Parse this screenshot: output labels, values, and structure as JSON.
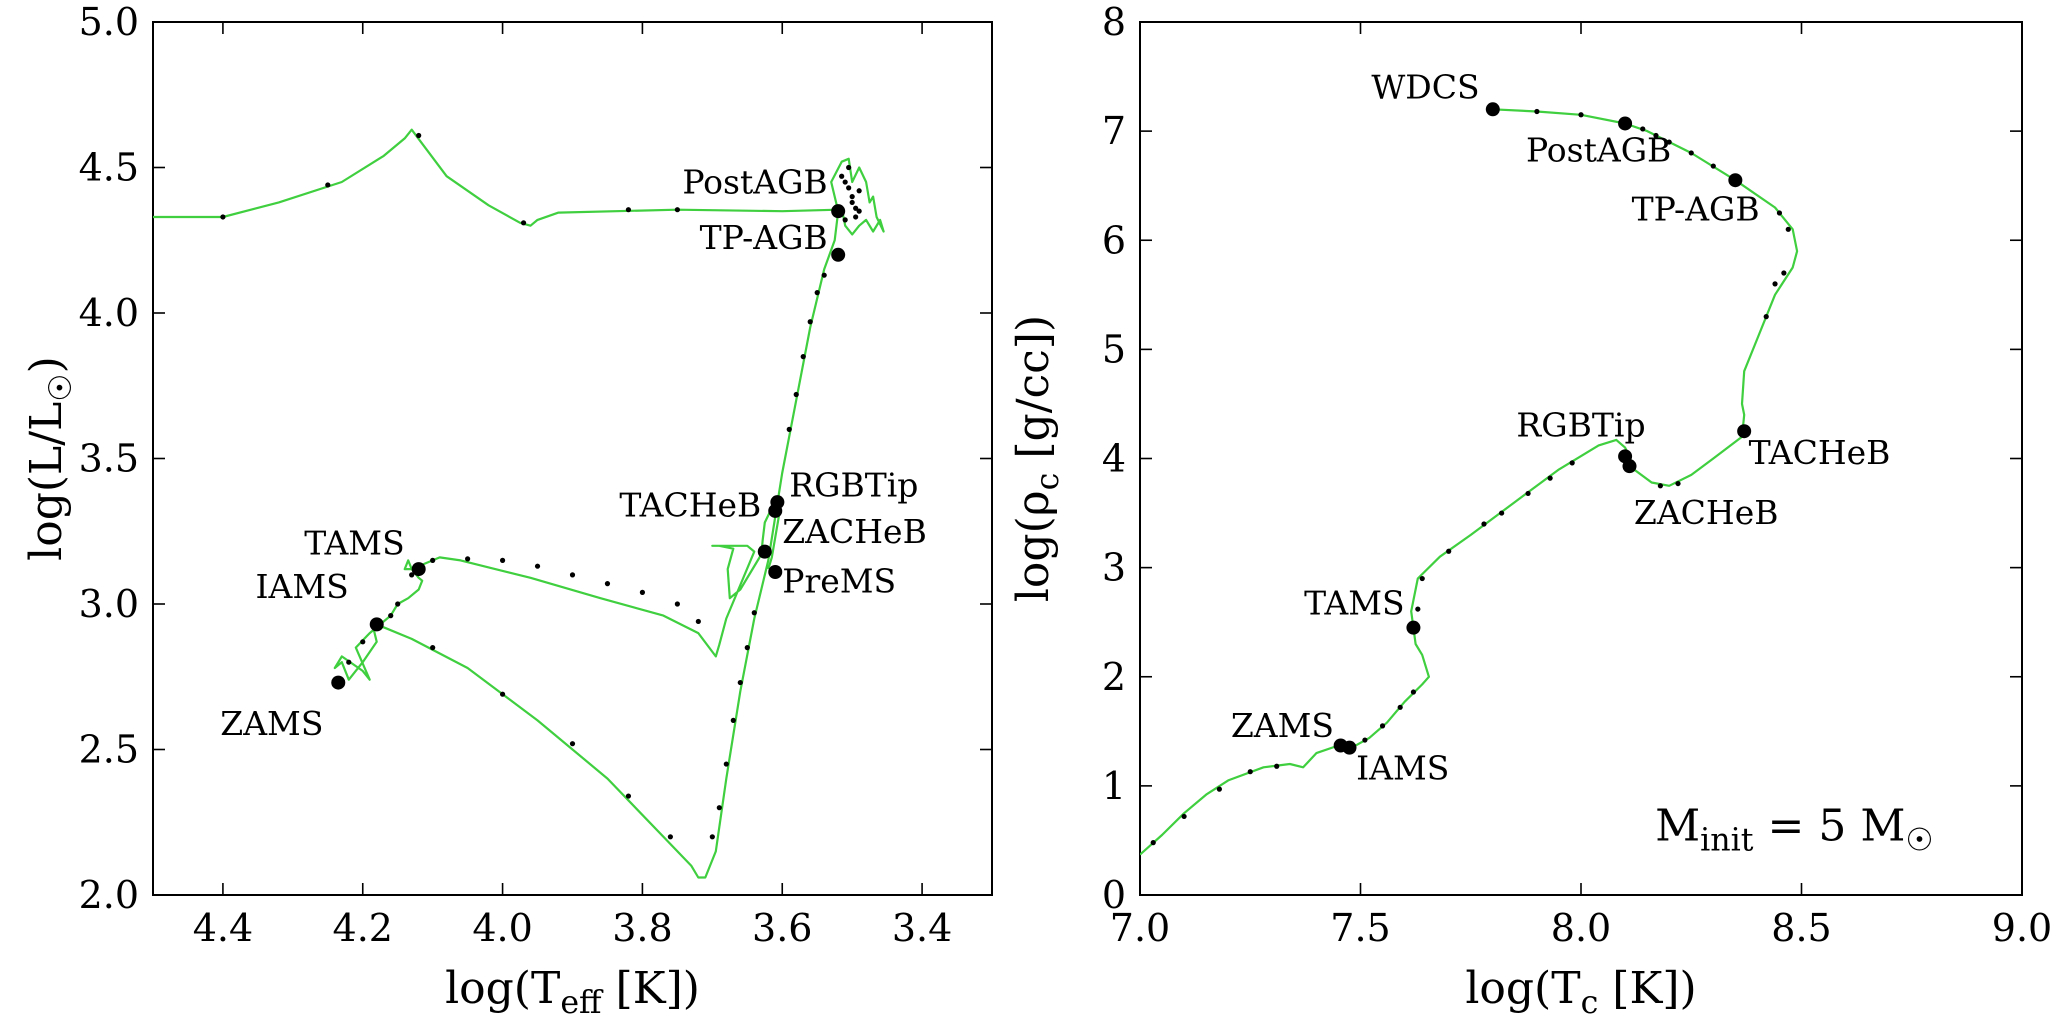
{
  "colors": {
    "track": "#3fcf3f",
    "markers": "#000000",
    "axes": "#000000"
  },
  "chart_data": [
    {
      "type": "line",
      "id": "hrd",
      "title": "",
      "xlabel": "log(T_eff [K])",
      "xlabel_parts": {
        "pre": "log(T",
        "sub": "eff",
        "post": " [K])"
      },
      "ylabel": "log(L/L☉)",
      "ylabel_parts": {
        "pre": "log(L/L",
        "sub": "☉",
        "post": ")"
      },
      "xlim": [
        4.5,
        3.3
      ],
      "ylim": [
        2.0,
        5.0
      ],
      "x_inverted": true,
      "xticks": [
        4.4,
        4.2,
        4.0,
        3.8,
        3.6,
        3.4
      ],
      "xtick_labels": [
        "4.4",
        "4.2",
        "4.0",
        "3.8",
        "3.6",
        "3.4"
      ],
      "yticks": [
        2.0,
        2.5,
        3.0,
        3.5,
        4.0,
        4.5,
        5.0
      ],
      "ytick_labels": [
        "2.0",
        "2.5",
        "3.0",
        "3.5",
        "4.0",
        "4.5",
        "5.0"
      ],
      "track": [
        [
          3.62,
          3.12
        ],
        [
          3.615,
          3.16
        ],
        [
          3.605,
          3.3
        ],
        [
          3.61,
          3.36
        ],
        [
          3.615,
          3.33
        ],
        [
          3.625,
          3.28
        ],
        [
          3.628,
          3.22
        ],
        [
          3.63,
          3.17
        ],
        [
          3.66,
          3.05
        ],
        [
          3.675,
          3.02
        ],
        [
          3.678,
          3.12
        ],
        [
          3.67,
          3.19
        ],
        [
          3.69,
          3.2
        ],
        [
          3.7,
          3.2
        ],
        [
          3.65,
          3.2
        ],
        [
          3.64,
          3.18
        ],
        [
          3.68,
          2.95
        ],
        [
          3.69,
          2.86
        ],
        [
          3.695,
          2.82
        ],
        [
          3.72,
          2.9
        ],
        [
          3.77,
          2.96
        ],
        [
          3.86,
          3.02
        ],
        [
          3.96,
          3.09
        ],
        [
          4.06,
          3.15
        ],
        [
          4.09,
          3.16
        ],
        [
          4.13,
          3.12
        ],
        [
          4.14,
          3.12
        ],
        [
          4.135,
          3.15
        ],
        [
          4.13,
          3.12
        ],
        [
          4.12,
          3.09
        ],
        [
          4.115,
          3.08
        ],
        [
          4.12,
          3.05
        ],
        [
          4.135,
          3.02
        ],
        [
          4.15,
          3.0
        ],
        [
          4.16,
          2.96
        ],
        [
          4.175,
          2.93
        ],
        [
          4.185,
          2.92
        ],
        [
          4.18,
          2.87
        ],
        [
          4.2,
          2.8
        ],
        [
          4.22,
          2.74
        ],
        [
          4.23,
          2.8
        ],
        [
          4.24,
          2.78
        ],
        [
          4.23,
          2.82
        ],
        [
          4.2,
          2.77
        ],
        [
          4.19,
          2.74
        ],
        [
          4.21,
          2.85
        ],
        [
          4.19,
          2.9
        ],
        [
          4.18,
          2.92
        ],
        [
          4.17,
          2.92
        ],
        [
          4.13,
          2.88
        ],
        [
          4.05,
          2.78
        ],
        [
          3.95,
          2.6
        ],
        [
          3.85,
          2.4
        ],
        [
          3.77,
          2.2
        ],
        [
          3.73,
          2.1
        ],
        [
          3.72,
          2.06
        ],
        [
          3.71,
          2.06
        ],
        [
          3.695,
          2.15
        ],
        [
          3.68,
          2.4
        ],
        [
          3.66,
          2.7
        ],
        [
          3.64,
          2.95
        ],
        [
          3.62,
          3.15
        ],
        [
          3.6,
          3.45
        ],
        [
          3.58,
          3.7
        ],
        [
          3.56,
          3.95
        ],
        [
          3.54,
          4.15
        ],
        [
          3.525,
          4.25
        ],
        [
          3.52,
          4.35
        ],
        [
          3.53,
          4.45
        ],
        [
          3.515,
          4.52
        ],
        [
          3.505,
          4.53
        ],
        [
          3.5,
          4.45
        ],
        [
          3.49,
          4.5
        ],
        [
          3.48,
          4.45
        ],
        [
          3.475,
          4.38
        ],
        [
          3.47,
          4.4
        ],
        [
          3.465,
          4.33
        ],
        [
          3.455,
          4.28
        ],
        [
          3.46,
          4.32
        ],
        [
          3.47,
          4.28
        ],
        [
          3.48,
          4.32
        ],
        [
          3.49,
          4.3
        ],
        [
          3.5,
          4.27
        ],
        [
          3.51,
          4.3
        ],
        [
          3.515,
          4.36
        ],
        [
          3.52,
          4.355
        ],
        [
          3.6,
          4.35
        ],
        [
          3.75,
          4.355
        ],
        [
          3.92,
          4.345
        ],
        [
          3.95,
          4.32
        ],
        [
          3.96,
          4.3
        ],
        [
          3.975,
          4.31
        ],
        [
          4.02,
          4.37
        ],
        [
          4.08,
          4.47
        ],
        [
          4.13,
          4.63
        ],
        [
          4.14,
          4.6
        ],
        [
          4.17,
          4.54
        ],
        [
          4.23,
          4.45
        ],
        [
          4.32,
          4.38
        ],
        [
          4.4,
          4.33
        ],
        [
          4.5,
          4.33
        ]
      ],
      "markers": [
        {
          "label": "ZAMS",
          "x": 4.235,
          "y": 2.73,
          "label_x": 4.33,
          "label_y": 2.55,
          "anchor": "middle"
        },
        {
          "label": "IAMS",
          "x": 4.18,
          "y": 2.93,
          "label_x": 4.22,
          "label_y": 3.02,
          "anchor": "end"
        },
        {
          "label": "TAMS",
          "x": 4.12,
          "y": 3.12,
          "label_x": 4.14,
          "label_y": 3.17,
          "anchor": "end"
        },
        {
          "label": "PreMS",
          "x": 3.61,
          "y": 3.11,
          "label_x": 3.6,
          "label_y": 3.04,
          "anchor": "start"
        },
        {
          "label": "ZACHeB",
          "x": 3.625,
          "y": 3.18,
          "label_x": 3.6,
          "label_y": 3.21,
          "anchor": "start"
        },
        {
          "label": "TACHeB",
          "x": 3.61,
          "y": 3.32,
          "label_x": 3.63,
          "label_y": 3.3,
          "anchor": "end"
        },
        {
          "label": "RGBTip",
          "x": 3.607,
          "y": 3.35,
          "label_x": 3.59,
          "label_y": 3.37,
          "anchor": "start"
        },
        {
          "label": "TP-AGB",
          "x": 3.52,
          "y": 4.2,
          "label_x": 3.535,
          "label_y": 4.22,
          "anchor": "end"
        },
        {
          "label": "PostAGB",
          "x": 3.52,
          "y": 4.35,
          "label_x": 3.535,
          "label_y": 4.41,
          "anchor": "end"
        }
      ],
      "step_points": [
        [
          4.4,
          4.33
        ],
        [
          4.25,
          4.44
        ],
        [
          4.12,
          4.61
        ],
        [
          3.97,
          4.31
        ],
        [
          3.82,
          4.355
        ],
        [
          3.75,
          4.355
        ],
        [
          4.22,
          2.8
        ],
        [
          4.2,
          2.87
        ],
        [
          4.16,
          2.96
        ],
        [
          4.15,
          3.0
        ],
        [
          4.13,
          3.1
        ],
        [
          4.1,
          3.15
        ],
        [
          4.05,
          3.155
        ],
        [
          4.0,
          3.15
        ],
        [
          3.95,
          3.13
        ],
        [
          3.9,
          3.1
        ],
        [
          3.85,
          3.07
        ],
        [
          3.8,
          3.04
        ],
        [
          3.75,
          3.0
        ],
        [
          3.72,
          2.94
        ],
        [
          4.1,
          2.85
        ],
        [
          4.0,
          2.69
        ],
        [
          3.9,
          2.52
        ],
        [
          3.82,
          2.34
        ],
        [
          3.76,
          2.2
        ],
        [
          3.7,
          2.2
        ],
        [
          3.69,
          2.3
        ],
        [
          3.68,
          2.45
        ],
        [
          3.67,
          2.6
        ],
        [
          3.66,
          2.73
        ],
        [
          3.65,
          2.85
        ],
        [
          3.64,
          2.97
        ],
        [
          3.59,
          3.6
        ],
        [
          3.58,
          3.72
        ],
        [
          3.57,
          3.85
        ],
        [
          3.56,
          3.97
        ],
        [
          3.55,
          4.07
        ],
        [
          3.54,
          4.13
        ],
        [
          3.51,
          4.45
        ],
        [
          3.5,
          4.38
        ],
        [
          3.495,
          4.33
        ],
        [
          3.505,
          4.5
        ],
        [
          3.5,
          4.4
        ],
        [
          3.49,
          4.42
        ],
        [
          3.51,
          4.32
        ],
        [
          3.495,
          4.36
        ],
        [
          3.505,
          4.43
        ],
        [
          3.515,
          4.47
        ],
        [
          3.49,
          4.35
        ]
      ]
    },
    {
      "type": "line",
      "id": "central",
      "title": "",
      "xlabel": "log(T_c [K])",
      "xlabel_parts": {
        "pre": "log(T",
        "sub": "c",
        "post": " [K])"
      },
      "ylabel": "log(ρ_c [g/cc])",
      "ylabel_parts": {
        "pre": "log(ρ",
        "sub": "c",
        "post": " [g/cc])"
      },
      "xlim": [
        7.0,
        9.0
      ],
      "ylim": [
        0,
        8
      ],
      "xticks": [
        7.0,
        7.5,
        8.0,
        8.5,
        9.0
      ],
      "xtick_labels": [
        "7.0",
        "7.5",
        "8.0",
        "8.5",
        "9.0"
      ],
      "yticks": [
        0,
        1,
        2,
        3,
        4,
        5,
        6,
        7,
        8
      ],
      "ytick_labels": [
        "0",
        "1",
        "2",
        "3",
        "4",
        "5",
        "6",
        "7",
        "8"
      ],
      "annotation": {
        "pre": "M",
        "sub": "init",
        "mid": " = 5 M",
        "sub2": "☉",
        "x": 8.8,
        "y": 0.5
      },
      "track": [
        [
          7.0,
          0.37
        ],
        [
          7.05,
          0.55
        ],
        [
          7.1,
          0.75
        ],
        [
          7.15,
          0.92
        ],
        [
          7.2,
          1.05
        ],
        [
          7.28,
          1.17
        ],
        [
          7.34,
          1.2
        ],
        [
          7.37,
          1.17
        ],
        [
          7.4,
          1.3
        ],
        [
          7.45,
          1.37
        ],
        [
          7.48,
          1.35
        ],
        [
          7.52,
          1.44
        ],
        [
          7.56,
          1.58
        ],
        [
          7.6,
          1.77
        ],
        [
          7.64,
          1.93
        ],
        [
          7.655,
          2.0
        ],
        [
          7.64,
          2.2
        ],
        [
          7.625,
          2.3
        ],
        [
          7.62,
          2.45
        ],
        [
          7.615,
          2.6
        ],
        [
          7.63,
          2.9
        ],
        [
          7.68,
          3.1
        ],
        [
          7.75,
          3.3
        ],
        [
          7.85,
          3.6
        ],
        [
          7.95,
          3.9
        ],
        [
          8.04,
          4.12
        ],
        [
          8.08,
          4.17
        ],
        [
          8.1,
          4.1
        ],
        [
          8.11,
          4.02
        ],
        [
          8.12,
          3.9
        ],
        [
          8.16,
          3.78
        ],
        [
          8.2,
          3.75
        ],
        [
          8.25,
          3.85
        ],
        [
          8.3,
          4.0
        ],
        [
          8.365,
          4.2
        ],
        [
          8.37,
          4.4
        ],
        [
          8.365,
          4.5
        ],
        [
          8.37,
          4.8
        ],
        [
          8.4,
          5.1
        ],
        [
          8.44,
          5.5
        ],
        [
          8.48,
          5.75
        ],
        [
          8.49,
          5.9
        ],
        [
          8.48,
          6.1
        ],
        [
          8.44,
          6.3
        ],
        [
          8.35,
          6.55
        ],
        [
          8.25,
          6.8
        ],
        [
          8.15,
          7.0
        ],
        [
          8.1,
          7.07
        ],
        [
          8.0,
          7.15
        ],
        [
          7.9,
          7.18
        ],
        [
          7.8,
          7.2
        ]
      ],
      "markers": [
        {
          "label": "ZAMS",
          "x": 7.455,
          "y": 1.37,
          "label_x": 7.44,
          "label_y": 1.45,
          "anchor": "end"
        },
        {
          "label": "IAMS",
          "x": 7.475,
          "y": 1.35,
          "label_x": 7.49,
          "label_y": 1.06,
          "anchor": "start"
        },
        {
          "label": "TAMS",
          "x": 7.62,
          "y": 2.45,
          "label_x": 7.6,
          "label_y": 2.57,
          "anchor": "end"
        },
        {
          "label": "RGBTip",
          "x": 8.1,
          "y": 4.02,
          "label_x": 8.0,
          "label_y": 4.2,
          "anchor": "middle"
        },
        {
          "label": "ZACHeB",
          "x": 8.11,
          "y": 3.93,
          "label_x": 8.12,
          "label_y": 3.4,
          "anchor": "start"
        },
        {
          "label": "TACHeB",
          "x": 8.37,
          "y": 4.25,
          "label_x": 8.38,
          "label_y": 3.95,
          "anchor": "start"
        },
        {
          "label": "TP-AGB",
          "x": 8.35,
          "y": 6.55,
          "label_x": 8.26,
          "label_y": 6.18,
          "anchor": "middle"
        },
        {
          "label": "PostAGB",
          "x": 8.1,
          "y": 7.07,
          "label_x": 8.04,
          "label_y": 6.72,
          "anchor": "middle"
        },
        {
          "label": "WDCS",
          "x": 7.8,
          "y": 7.2,
          "label_x": 7.77,
          "label_y": 7.3,
          "anchor": "end"
        }
      ],
      "step_points": [
        [
          7.03,
          0.48
        ],
        [
          7.1,
          0.72
        ],
        [
          7.18,
          0.97
        ],
        [
          7.25,
          1.13
        ],
        [
          7.31,
          1.18
        ],
        [
          7.51,
          1.42
        ],
        [
          7.55,
          1.55
        ],
        [
          7.59,
          1.72
        ],
        [
          7.62,
          1.86
        ],
        [
          7.63,
          2.62
        ],
        [
          7.64,
          2.9
        ],
        [
          7.7,
          3.15
        ],
        [
          7.78,
          3.4
        ],
        [
          7.82,
          3.5
        ],
        [
          7.88,
          3.68
        ],
        [
          7.93,
          3.82
        ],
        [
          7.98,
          3.96
        ],
        [
          8.18,
          3.75
        ],
        [
          8.22,
          3.77
        ],
        [
          8.42,
          5.3
        ],
        [
          8.44,
          5.6
        ],
        [
          8.46,
          5.7
        ],
        [
          8.47,
          6.1
        ],
        [
          8.45,
          6.25
        ],
        [
          8.3,
          6.68
        ],
        [
          8.25,
          6.8
        ],
        [
          8.2,
          6.9
        ],
        [
          8.17,
          6.96
        ],
        [
          8.14,
          7.02
        ],
        [
          8.0,
          7.15
        ],
        [
          7.9,
          7.18
        ]
      ]
    }
  ]
}
